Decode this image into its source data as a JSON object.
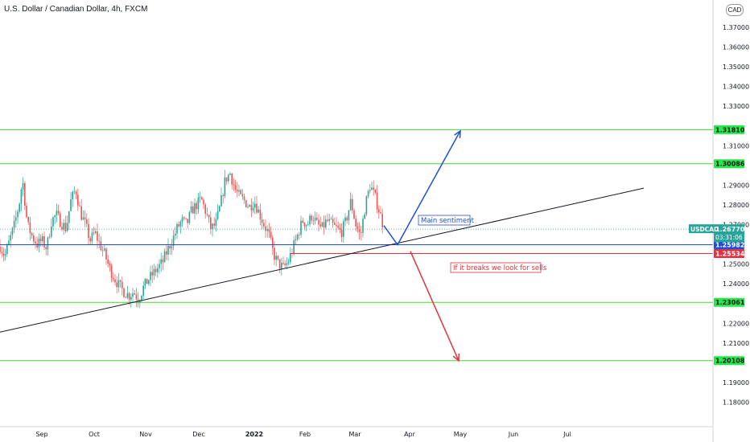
{
  "header": {
    "title": "U.S. Dollar / Canadian Dollar, 4h, FXCM",
    "currency_button": "CAD"
  },
  "colors": {
    "level_line": "#4cd137",
    "level_label_bg": "#29e84a",
    "blue": "#1e4fd8",
    "red": "#e2323f",
    "trend": "#131722",
    "candle_up": "#26a69a",
    "candle_down": "#ef5350",
    "symbol_label_bg": "#26a69a"
  },
  "chart_data": {
    "type": "candlestick",
    "symbol": "USDCAD",
    "timeframe": "4h",
    "x_ticks": [
      "Sep",
      "Oct",
      "Nov",
      "Dec",
      "2022",
      "Feb",
      "Mar",
      "Apr",
      "May",
      "Jun",
      "Jul"
    ],
    "y_ticks": [
      "1.37000",
      "1.36000",
      "1.35000",
      "1.34000",
      "1.33000",
      "1.31000",
      "1.29000",
      "1.28000",
      "1.27000",
      "1.25000",
      "1.24000",
      "1.22000",
      "1.21000",
      "1.19000",
      "1.18000"
    ],
    "ylim": [
      1.175,
      1.38
    ],
    "price_path": [
      [
        0,
        1.259
      ],
      [
        6,
        1.254
      ],
      [
        12,
        1.262
      ],
      [
        18,
        1.27
      ],
      [
        24,
        1.281
      ],
      [
        28,
        1.293
      ],
      [
        34,
        1.27
      ],
      [
        40,
        1.264
      ],
      [
        46,
        1.26
      ],
      [
        52,
        1.262
      ],
      [
        58,
        1.258
      ],
      [
        64,
        1.272
      ],
      [
        70,
        1.275
      ],
      [
        76,
        1.271
      ],
      [
        82,
        1.268
      ],
      [
        88,
        1.282
      ],
      [
        94,
        1.288
      ],
      [
        100,
        1.276
      ],
      [
        106,
        1.27
      ],
      [
        112,
        1.262
      ],
      [
        118,
        1.266
      ],
      [
        124,
        1.26
      ],
      [
        130,
        1.255
      ],
      [
        136,
        1.248
      ],
      [
        142,
        1.243
      ],
      [
        148,
        1.239
      ],
      [
        154,
        1.236
      ],
      [
        160,
        1.234
      ],
      [
        166,
        1.236
      ],
      [
        172,
        1.232
      ],
      [
        178,
        1.238
      ],
      [
        184,
        1.242
      ],
      [
        190,
        1.245
      ],
      [
        196,
        1.248
      ],
      [
        202,
        1.251
      ],
      [
        208,
        1.257
      ],
      [
        214,
        1.262
      ],
      [
        220,
        1.268
      ],
      [
        226,
        1.272
      ],
      [
        232,
        1.27
      ],
      [
        238,
        1.277
      ],
      [
        244,
        1.28
      ],
      [
        250,
        1.283
      ],
      [
        256,
        1.276
      ],
      [
        262,
        1.268
      ],
      [
        268,
        1.27
      ],
      [
        274,
        1.28
      ],
      [
        280,
        1.293
      ],
      [
        286,
        1.296
      ],
      [
        292,
        1.288
      ],
      [
        298,
        1.284
      ],
      [
        304,
        1.282
      ],
      [
        310,
        1.279
      ],
      [
        316,
        1.282
      ],
      [
        322,
        1.276
      ],
      [
        328,
        1.27
      ],
      [
        334,
        1.265
      ],
      [
        340,
        1.255
      ],
      [
        346,
        1.25
      ],
      [
        352,
        1.248
      ],
      [
        358,
        1.251
      ],
      [
        364,
        1.258
      ],
      [
        370,
        1.265
      ],
      [
        376,
        1.272
      ],
      [
        382,
        1.27
      ],
      [
        388,
        1.275
      ],
      [
        394,
        1.27
      ],
      [
        400,
        1.268
      ],
      [
        406,
        1.272
      ],
      [
        412,
        1.27
      ],
      [
        418,
        1.268
      ],
      [
        424,
        1.266
      ],
      [
        430,
        1.272
      ],
      [
        436,
        1.282
      ],
      [
        442,
        1.27
      ],
      [
        448,
        1.264
      ],
      [
        454,
        1.28
      ],
      [
        460,
        1.29
      ],
      [
        466,
        1.284
      ],
      [
        472,
        1.276
      ],
      [
        477,
        1.268
      ]
    ],
    "levels": [
      {
        "label": "1.31810",
        "value": 1.3181,
        "color": "green"
      },
      {
        "label": "1.30086",
        "value": 1.30086,
        "color": "green"
      },
      {
        "label": "1.23061",
        "value": 1.23061,
        "color": "green"
      },
      {
        "label": "1.20108",
        "value": 1.20108,
        "color": "green"
      }
    ],
    "blue_level": {
      "label": "1.25982",
      "value": 1.25982
    },
    "red_level": {
      "label": "1.25534",
      "value": 1.25534
    },
    "current_price": {
      "symbol": "USDCAD",
      "price": "1.26770",
      "countdown": "03:31:06",
      "value": 1.2677
    },
    "trendline": {
      "from": {
        "bar": 0,
        "price": 1.2155
      },
      "to": {
        "bar": 800,
        "price": 1.2885
      }
    },
    "bull_arrow": [
      [
        477,
        1.2695
      ],
      [
        494,
        1.2598
      ],
      [
        572,
        1.3175
      ]
    ],
    "bear_arrow": [
      [
        510,
        1.2565
      ],
      [
        570,
        1.201
      ]
    ],
    "annotations": [
      {
        "text": "Main sentiment",
        "color": "blue"
      },
      {
        "text": "If it breaks we look for sells",
        "color": "red"
      }
    ]
  }
}
